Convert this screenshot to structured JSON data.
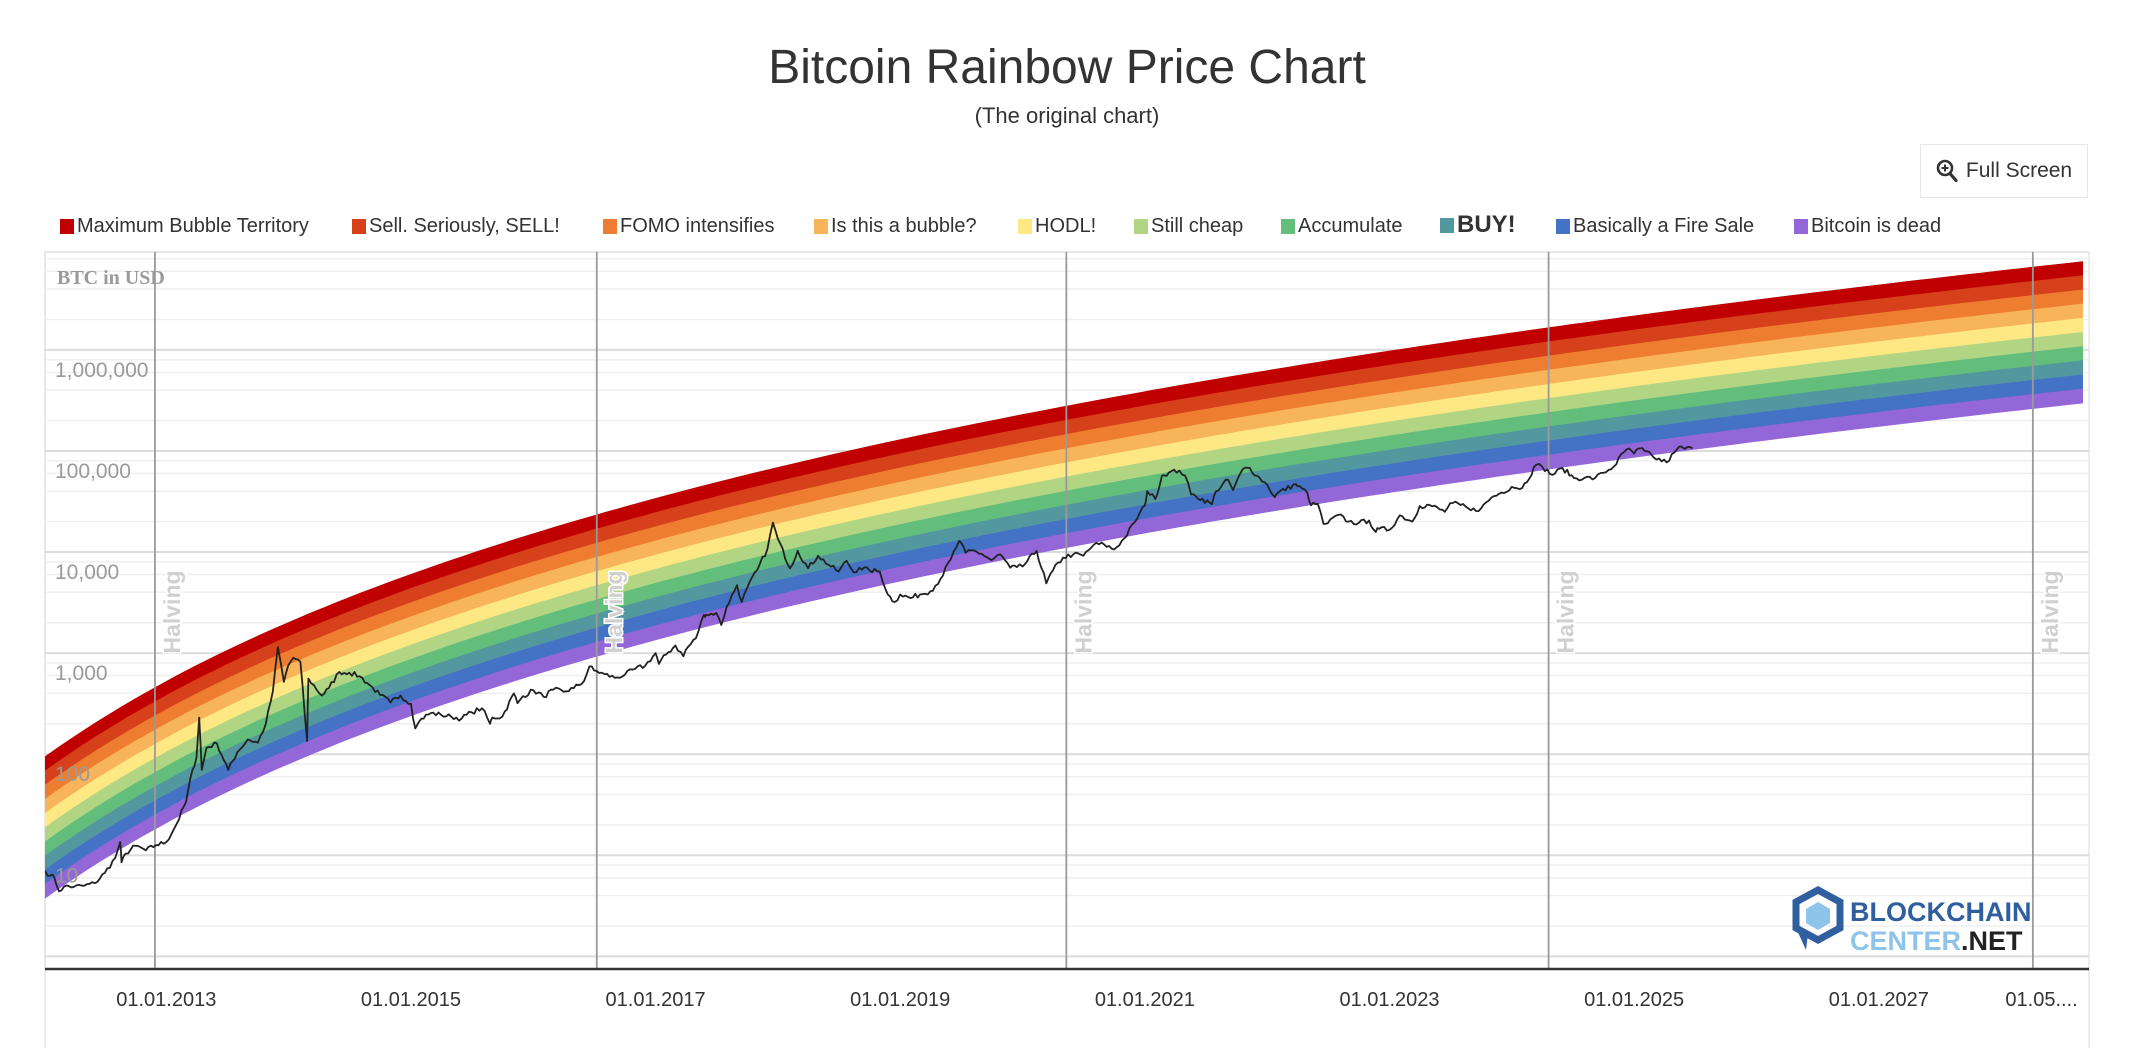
{
  "header": {
    "title": "Bitcoin Rainbow Price Chart",
    "subtitle": "(The original chart)",
    "full_screen_label": "Full Screen",
    "full_screen_icon": "zoom-in-magnifier-icon"
  },
  "legend": [
    {
      "label": "Maximum Bubble Territory",
      "color": "#c00000"
    },
    {
      "label": "Sell. Seriously, SELL!",
      "color": "#d6401a"
    },
    {
      "label": "FOMO intensifies",
      "color": "#ef7d31"
    },
    {
      "label": "Is this a bubble?",
      "color": "#f8b45a"
    },
    {
      "label": "HODL!",
      "color": "#fee883"
    },
    {
      "label": "Still cheap",
      "color": "#b2d584"
    },
    {
      "label": "Accumulate",
      "color": "#63be7b"
    },
    {
      "label": "BUY!",
      "color": "#54989f"
    },
    {
      "label": "Basically a Fire Sale",
      "color": "#4472c4"
    },
    {
      "label": "Bitcoin is dead",
      "color": "#9467d9"
    }
  ],
  "logo": {
    "line1": "BLOCKCHAIN",
    "line2a": "CENTER",
    "line2b": ".NET"
  },
  "chart_data": {
    "type": "line",
    "title": "Bitcoin Rainbow Price Chart",
    "subtitle": "(The original chart)",
    "ylabel": "BTC in USD",
    "y_scale": "log",
    "ylim": [
      0.75,
      9300000
    ],
    "xlim": [
      "2012-01-04",
      "2028-09-20"
    ],
    "y_ticks": [
      {
        "value": 10,
        "label": "10"
      },
      {
        "value": 100,
        "label": "100"
      },
      {
        "value": 1000,
        "label": "1,000"
      },
      {
        "value": 10000,
        "label": "10,000"
      },
      {
        "value": 100000,
        "label": "100,000"
      },
      {
        "value": 1000000,
        "label": "1,000,000"
      }
    ],
    "x_ticks": [
      {
        "date": "2013-01-01",
        "label": "01.01.2013"
      },
      {
        "date": "2015-01-01",
        "label": "01.01.2015"
      },
      {
        "date": "2017-01-01",
        "label": "01.01.2017"
      },
      {
        "date": "2019-01-01",
        "label": "01.01.2019"
      },
      {
        "date": "2021-01-01",
        "label": "01.01.2021"
      },
      {
        "date": "2023-01-01",
        "label": "01.01.2023"
      },
      {
        "date": "2025-01-01",
        "label": "01.01.2025"
      },
      {
        "date": "2027-01-01",
        "label": "01.01.2027"
      },
      {
        "date": "2028-05-01",
        "label": "01.05...."
      }
    ],
    "grid": true,
    "legend_position": "top",
    "halvings": [
      {
        "date": "2012-11-28",
        "label": "Halving"
      },
      {
        "date": "2016-07-09",
        "label": "Halving"
      },
      {
        "date": "2020-05-11",
        "label": "Halving"
      },
      {
        "date": "2024-04-20",
        "label": "Halving"
      },
      {
        "date": "2028-04-05",
        "label": "Halving"
      }
    ],
    "price_series": {
      "color": "#222222",
      "points": [
        [
          "2012-01-04",
          7.0
        ],
        [
          "2012-01-20",
          6.3
        ],
        [
          "2012-02-01",
          6.0
        ],
        [
          "2012-02-15",
          4.4
        ],
        [
          "2012-03-01",
          4.9
        ],
        [
          "2012-04-01",
          4.9
        ],
        [
          "2012-05-01",
          5.0
        ],
        [
          "2012-06-01",
          5.3
        ],
        [
          "2012-07-01",
          6.7
        ],
        [
          "2012-08-01",
          9.4
        ],
        [
          "2012-08-16",
          13.5
        ],
        [
          "2012-08-20",
          8.5
        ],
        [
          "2012-09-01",
          10.4
        ],
        [
          "2012-10-01",
          12.4
        ],
        [
          "2012-11-01",
          11.2
        ],
        [
          "2012-12-01",
          12.6
        ],
        [
          "2013-01-01",
          13.5
        ],
        [
          "2013-02-01",
          20.5
        ],
        [
          "2013-03-01",
          34
        ],
        [
          "2013-03-20",
          70
        ],
        [
          "2013-04-01",
          93
        ],
        [
          "2013-04-09",
          230
        ],
        [
          "2013-04-17",
          70
        ],
        [
          "2013-05-01",
          116
        ],
        [
          "2013-06-01",
          128
        ],
        [
          "2013-07-05",
          70
        ],
        [
          "2013-08-01",
          105
        ],
        [
          "2013-09-01",
          140
        ],
        [
          "2013-10-01",
          130
        ],
        [
          "2013-10-25",
          200
        ],
        [
          "2013-11-15",
          420
        ],
        [
          "2013-11-30",
          1150
        ],
        [
          "2013-12-18",
          520
        ],
        [
          "2013-12-31",
          760
        ],
        [
          "2014-01-15",
          900
        ],
        [
          "2014-02-05",
          820
        ],
        [
          "2014-02-25",
          135
        ],
        [
          "2014-03-01",
          560
        ],
        [
          "2014-04-10",
          380
        ],
        [
          "2014-05-01",
          450
        ],
        [
          "2014-06-01",
          650
        ],
        [
          "2014-07-01",
          640
        ],
        [
          "2014-08-01",
          590
        ],
        [
          "2014-09-01",
          480
        ],
        [
          "2014-10-01",
          385
        ],
        [
          "2014-11-01",
          325
        ],
        [
          "2014-12-01",
          380
        ],
        [
          "2015-01-01",
          315
        ],
        [
          "2015-01-14",
          180
        ],
        [
          "2015-02-01",
          225
        ],
        [
          "2015-03-01",
          255
        ],
        [
          "2015-04-01",
          245
        ],
        [
          "2015-05-01",
          235
        ],
        [
          "2015-06-01",
          225
        ],
        [
          "2015-07-01",
          260
        ],
        [
          "2015-08-01",
          285
        ],
        [
          "2015-08-25",
          200
        ],
        [
          "2015-09-01",
          230
        ],
        [
          "2015-10-01",
          236
        ],
        [
          "2015-11-04",
          400
        ],
        [
          "2015-11-15",
          320
        ],
        [
          "2015-12-01",
          375
        ],
        [
          "2016-01-01",
          430
        ],
        [
          "2016-02-01",
          370
        ],
        [
          "2016-03-01",
          435
        ],
        [
          "2016-04-01",
          415
        ],
        [
          "2016-05-01",
          450
        ],
        [
          "2016-06-01",
          530
        ],
        [
          "2016-06-17",
          740
        ],
        [
          "2016-07-01",
          675
        ],
        [
          "2016-08-01",
          620
        ],
        [
          "2016-09-01",
          570
        ],
        [
          "2016-10-01",
          610
        ],
        [
          "2016-11-01",
          700
        ],
        [
          "2016-12-01",
          750
        ],
        [
          "2017-01-01",
          1000
        ],
        [
          "2017-01-11",
          780
        ],
        [
          "2017-02-01",
          970
        ],
        [
          "2017-03-01",
          1190
        ],
        [
          "2017-03-25",
          930
        ],
        [
          "2017-04-01",
          1080
        ],
        [
          "2017-05-01",
          1400
        ],
        [
          "2017-05-25",
          2400
        ],
        [
          "2017-06-01",
          2400
        ],
        [
          "2017-07-01",
          2500
        ],
        [
          "2017-07-16",
          1900
        ],
        [
          "2017-08-01",
          2870
        ],
        [
          "2017-09-01",
          4700
        ],
        [
          "2017-09-15",
          3200
        ],
        [
          "2017-10-01",
          4400
        ],
        [
          "2017-11-01",
          6700
        ],
        [
          "2017-12-01",
          10800
        ],
        [
          "2017-12-17",
          19500
        ],
        [
          "2018-01-01",
          13500
        ],
        [
          "2018-02-06",
          6900
        ],
        [
          "2018-03-01",
          10300
        ],
        [
          "2018-04-01",
          6900
        ],
        [
          "2018-05-01",
          9200
        ],
        [
          "2018-06-01",
          7500
        ],
        [
          "2018-07-01",
          6400
        ],
        [
          "2018-07-25",
          8200
        ],
        [
          "2018-08-15",
          6300
        ],
        [
          "2018-09-01",
          7000
        ],
        [
          "2018-10-01",
          6600
        ],
        [
          "2018-11-01",
          6400
        ],
        [
          "2018-11-25",
          3800
        ],
        [
          "2018-12-15",
          3200
        ],
        [
          "2019-01-01",
          3800
        ],
        [
          "2019-02-01",
          3500
        ],
        [
          "2019-03-01",
          3800
        ],
        [
          "2019-04-01",
          4100
        ],
        [
          "2019-05-01",
          5400
        ],
        [
          "2019-06-01",
          8500
        ],
        [
          "2019-06-26",
          12900
        ],
        [
          "2019-07-15",
          9800
        ],
        [
          "2019-08-01",
          10400
        ],
        [
          "2019-09-01",
          9600
        ],
        [
          "2019-10-01",
          8300
        ],
        [
          "2019-10-26",
          9500
        ],
        [
          "2019-11-25",
          7000
        ],
        [
          "2019-12-15",
          7100
        ],
        [
          "2020-01-01",
          7200
        ],
        [
          "2020-02-12",
          10300
        ],
        [
          "2020-03-12",
          4900
        ],
        [
          "2020-04-01",
          6600
        ],
        [
          "2020-05-01",
          8800
        ],
        [
          "2020-06-01",
          9500
        ],
        [
          "2020-07-01",
          9200
        ],
        [
          "2020-08-01",
          11800
        ],
        [
          "2020-09-01",
          11900
        ],
        [
          "2020-10-01",
          10600
        ],
        [
          "2020-11-01",
          13700
        ],
        [
          "2020-12-01",
          19700
        ],
        [
          "2021-01-01",
          29000
        ],
        [
          "2021-01-08",
          40000
        ],
        [
          "2021-02-01",
          33500
        ],
        [
          "2021-02-21",
          57000
        ],
        [
          "2021-03-13",
          61000
        ],
        [
          "2021-04-14",
          64000
        ],
        [
          "2021-05-01",
          57000
        ],
        [
          "2021-05-19",
          37000
        ],
        [
          "2021-06-01",
          36000
        ],
        [
          "2021-07-20",
          29800
        ],
        [
          "2021-08-01",
          40000
        ],
        [
          "2021-09-06",
          52000
        ],
        [
          "2021-09-21",
          41000
        ],
        [
          "2021-10-20",
          66000
        ],
        [
          "2021-11-10",
          68000
        ],
        [
          "2021-12-01",
          57000
        ],
        [
          "2022-01-01",
          46300
        ],
        [
          "2022-01-24",
          35000
        ],
        [
          "2022-02-01",
          38500
        ],
        [
          "2022-03-28",
          47000
        ],
        [
          "2022-04-01",
          45000
        ],
        [
          "2022-05-01",
          38500
        ],
        [
          "2022-05-12",
          29000
        ],
        [
          "2022-06-01",
          30000
        ],
        [
          "2022-06-18",
          19000
        ],
        [
          "2022-07-01",
          19300
        ],
        [
          "2022-08-01",
          23300
        ],
        [
          "2022-09-01",
          20000
        ],
        [
          "2022-10-01",
          19400
        ],
        [
          "2022-11-01",
          20500
        ],
        [
          "2022-11-21",
          15800
        ],
        [
          "2022-12-01",
          17000
        ],
        [
          "2023-01-01",
          16600
        ],
        [
          "2023-02-01",
          23100
        ],
        [
          "2023-03-10",
          20000
        ],
        [
          "2023-04-01",
          28500
        ],
        [
          "2023-05-01",
          29200
        ],
        [
          "2023-06-15",
          25000
        ],
        [
          "2023-07-01",
          30500
        ],
        [
          "2023-08-01",
          29200
        ],
        [
          "2023-09-01",
          25900
        ],
        [
          "2023-10-01",
          27000
        ],
        [
          "2023-11-01",
          34600
        ],
        [
          "2023-12-01",
          38700
        ],
        [
          "2024-01-01",
          44200
        ],
        [
          "2024-02-01",
          43000
        ],
        [
          "2024-03-14",
          73000
        ],
        [
          "2024-04-01",
          69700
        ],
        [
          "2024-05-01",
          58000
        ],
        [
          "2024-06-01",
          67500
        ],
        [
          "2024-07-05",
          54000
        ],
        [
          "2024-08-05",
          54000
        ],
        [
          "2024-09-06",
          53900
        ],
        [
          "2024-10-01",
          60800
        ],
        [
          "2024-11-01",
          70000
        ],
        [
          "2024-12-01",
          97000
        ],
        [
          "2024-12-17",
          106000
        ],
        [
          "2025-01-01",
          94500
        ],
        [
          "2025-01-20",
          106000
        ],
        [
          "2025-02-01",
          100000
        ],
        [
          "2025-03-01",
          86000
        ],
        [
          "2025-04-08",
          77000
        ],
        [
          "2025-05-01",
          96500
        ],
        [
          "2025-05-22",
          111000
        ],
        [
          "2025-06-01",
          105000
        ],
        [
          "2025-06-24",
          106000
        ]
      ]
    }
  }
}
